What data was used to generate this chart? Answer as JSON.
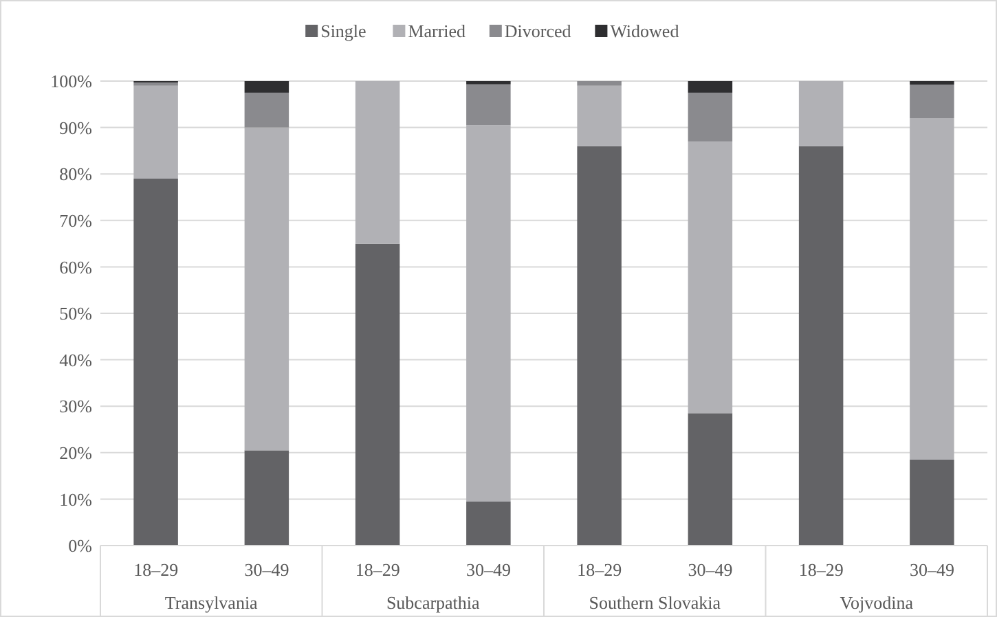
{
  "chart_data": {
    "type": "bar",
    "stacked": true,
    "categories": [
      "18–29",
      "30–49",
      "18–29",
      "30–49",
      "18–29",
      "30–49",
      "18–29",
      "30–49"
    ],
    "series": [
      {
        "name": "Single",
        "color": "#636366",
        "values": [
          79,
          20.5,
          65,
          9.5,
          86,
          28.5,
          86,
          18.5
        ]
      },
      {
        "name": "Married",
        "color": "#b1b1b5",
        "values": [
          20,
          69.5,
          35,
          81,
          13,
          58.5,
          14,
          73.5
        ]
      },
      {
        "name": "Divorced",
        "color": "#8a8a8e",
        "values": [
          0.7,
          7.5,
          0,
          8.8,
          1,
          10.5,
          0,
          7.2
        ]
      },
      {
        "name": "Widowed",
        "color": "#2e2e30",
        "values": [
          0.3,
          2.5,
          0,
          0.7,
          0,
          2.5,
          0,
          0.8
        ]
      }
    ],
    "ylim": [
      0,
      100
    ],
    "yticks": [
      {
        "value": 0,
        "label": "0%"
      },
      {
        "value": 10,
        "label": "10%"
      },
      {
        "value": 20,
        "label": "20%"
      },
      {
        "value": 30,
        "label": "30%"
      },
      {
        "value": 40,
        "label": "40%"
      },
      {
        "value": 50,
        "label": "50%"
      },
      {
        "value": 60,
        "label": "60%"
      },
      {
        "value": 70,
        "label": "70%"
      },
      {
        "value": 80,
        "label": "80%"
      },
      {
        "value": 90,
        "label": "90%"
      },
      {
        "value": 100,
        "label": "100%"
      }
    ],
    "grid": "y",
    "legend": "top",
    "annotations": [
      "Transylvania",
      "Subcarpathia",
      "Southern Slovakia",
      "Vojvodina"
    ]
  }
}
